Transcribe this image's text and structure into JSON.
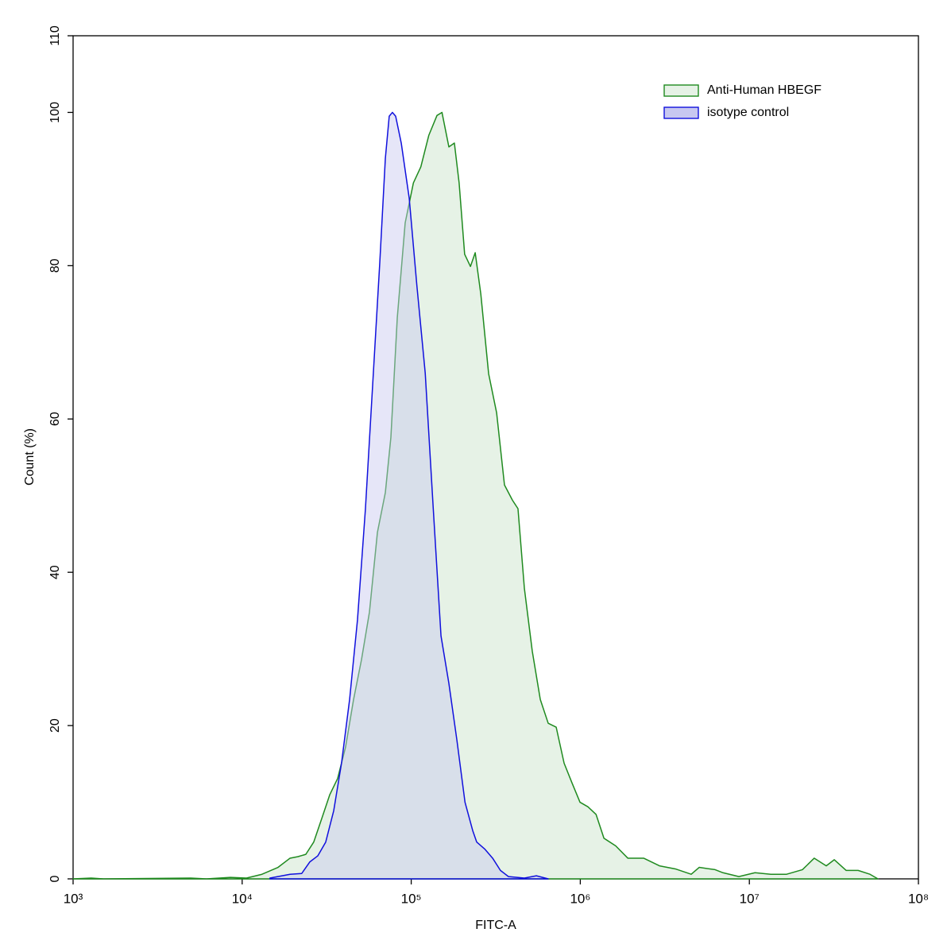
{
  "chart_data": {
    "type": "area",
    "xlabel": "FITC-A",
    "ylabel": "Count  (%)",
    "xscale": "log",
    "xlim": [
      1000,
      100000000
    ],
    "xticks": [
      {
        "value": 1000,
        "label": "10³"
      },
      {
        "value": 10000,
        "label": "10⁴"
      },
      {
        "value": 100000,
        "label": "10⁵"
      },
      {
        "value": 1000000,
        "label": "10⁶"
      },
      {
        "value": 10000000,
        "label": "10⁷"
      },
      {
        "value": 100000000,
        "label": "10⁸"
      }
    ],
    "ylim": [
      0,
      110
    ],
    "yticks": [
      0,
      20,
      40,
      60,
      80,
      100,
      110
    ],
    "grid": false,
    "legend": "upper right",
    "series": [
      {
        "name": "Anti-Human HBEGF",
        "color": "#1f8a1f",
        "fill": "#e6f2e6",
        "x": [
          1000,
          1280,
          1510,
          4960,
          6160,
          8520,
          10600,
          13100,
          16300,
          19200,
          21400,
          23800,
          26500,
          29600,
          33000,
          36700,
          40900,
          45600,
          50800,
          56600,
          63100,
          70300,
          75800,
          82700,
          92100,
          103000,
          114000,
          127000,
          142000,
          152000,
          167000,
          180000,
          192000,
          207000,
          224000,
          239000,
          258000,
          287000,
          320000,
          356000,
          397000,
          428000,
          467000,
          520000,
          580000,
          646000,
          720000,
          802000,
          894000,
          996000,
          1110000,
          1240000,
          1380000,
          1620000,
          1910000,
          2370000,
          2940000,
          3650000,
          4530000,
          5050000,
          6270000,
          6980000,
          8670000,
          10800000,
          13400000,
          16600000,
          20600000,
          24200000,
          28500000,
          31800000,
          37400000,
          44000000,
          51700000,
          57600000
        ],
        "values": [
          0,
          0.1,
          0,
          0.1,
          0,
          0.2,
          0.1,
          0.6,
          1.5,
          2.7,
          2.9,
          3.2,
          4.8,
          7.9,
          11.0,
          13.1,
          17.2,
          23.4,
          28.6,
          34.8,
          45.2,
          50.4,
          57.6,
          73.2,
          85.6,
          90.8,
          92.9,
          97.0,
          99.6,
          100,
          95.5,
          96.0,
          90.8,
          81.5,
          79.9,
          81.7,
          76.3,
          65.9,
          60.8,
          51.4,
          49.4,
          48.3,
          37.9,
          29.7,
          23.4,
          20.3,
          19.8,
          15.1,
          12.5,
          10.0,
          9.4,
          8.4,
          5.3,
          4.3,
          2.7,
          2.7,
          1.7,
          1.3,
          0.6,
          1.5,
          1.2,
          0.8,
          0.3,
          0.8,
          0.6,
          0.6,
          1.2,
          2.7,
          1.7,
          2.5,
          1.1,
          1.1,
          0.6,
          0
        ]
      },
      {
        "name": "isotype control",
        "color": "#1010dd",
        "fill": "#c8c8f0",
        "x": [
          14600,
          19200,
          22500,
          25100,
          28000,
          31200,
          34800,
          38700,
          43200,
          48100,
          53600,
          59700,
          65200,
          70300,
          74100,
          77400,
          80900,
          87300,
          97300,
          108000,
          121000,
          135000,
          150000,
          167000,
          186000,
          208000,
          231000,
          244000,
          272000,
          303000,
          337000,
          376000,
          467000,
          550000,
          646000
        ],
        "values": [
          0.1,
          0.6,
          0.7,
          2.2,
          3.0,
          4.8,
          8.9,
          15.1,
          23.4,
          33.8,
          48.3,
          66.0,
          80.5,
          94.0,
          99.5,
          100,
          99.5,
          96.0,
          88.8,
          77.4,
          66.0,
          48.3,
          31.7,
          25.5,
          18.2,
          10.0,
          6.3,
          4.8,
          3.9,
          2.7,
          1.1,
          0.3,
          0.1,
          0.4,
          0
        ]
      }
    ]
  }
}
